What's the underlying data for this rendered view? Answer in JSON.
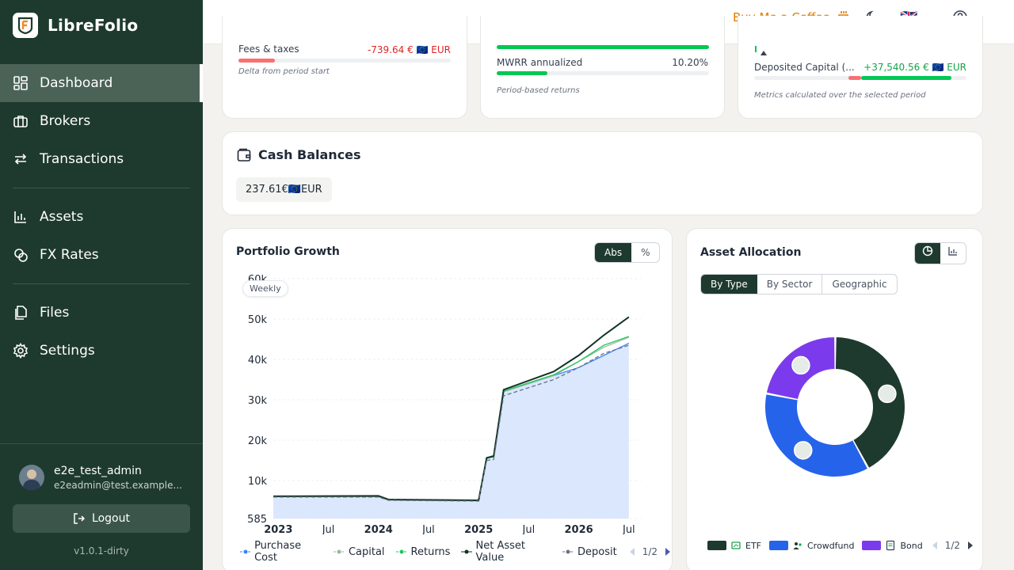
{
  "app": {
    "name": "LibreFolio",
    "version": "v1.0.1-dirty"
  },
  "nav": {
    "dashboard": "Dashboard",
    "brokers": "Brokers",
    "transactions": "Transactions",
    "assets": "Assets",
    "fx_rates": "FX Rates",
    "files": "Files",
    "settings": "Settings"
  },
  "user": {
    "name": "e2e_test_admin",
    "email": "e2eadmin@test.example...",
    "logout": "Logout"
  },
  "topbar": {
    "coffee": "Buy Me a Coffee",
    "language_flag": "🇬🇧"
  },
  "metrics": {
    "card1": {
      "label": "Fees & taxes",
      "value": "-739.64 € 🇪🇺 EUR",
      "hint": "Delta from period start",
      "bar_fraction": 0.17
    },
    "card2": {
      "label": "MWRR annualized",
      "value": "10.20%",
      "hint": "Period-based returns",
      "top_bar_fraction": 1.0,
      "bar_fraction": 0.24
    },
    "card3": {
      "label": "Deposited Capital (...",
      "value": "+37,540.56 € 🇪🇺 EUR",
      "hint": "Metrics calculated over the selected period"
    }
  },
  "cash": {
    "title": "Cash Balances",
    "chip": "237.61€🇪🇺EUR"
  },
  "growth": {
    "title": "Portfolio Growth",
    "toggle_abs": "Abs",
    "toggle_pct": "%",
    "freq": "Weekly",
    "legend": [
      "Purchase Cost",
      "Capital",
      "Returns",
      "Net Asset Value",
      "Deposit"
    ],
    "pager": "1/2"
  },
  "allocation": {
    "title": "Asset Allocation",
    "tabs": [
      "By Type",
      "By Sector",
      "Geographic"
    ],
    "legend": [
      "ETF",
      "Crowdfund",
      "Bond"
    ],
    "pager": "1/2"
  },
  "colors": {
    "sidebar": "#1e3a2f",
    "accent_green": "#00c853",
    "negative": "#dc2626",
    "coffee": "#e07b00"
  },
  "chart_data": [
    {
      "type": "line",
      "title": "Portfolio Growth",
      "y_ticks": [
        "585",
        "10k",
        "20k",
        "30k",
        "40k",
        "50k",
        "60k"
      ],
      "x_ticks": [
        "2023",
        "Jul",
        "2024",
        "Jul",
        "2025",
        "Jul",
        "2026",
        "Jul"
      ],
      "ylim": [
        585,
        60000
      ],
      "x": [
        2022.95,
        2024.0,
        2024.1,
        2025.0,
        2025.08,
        2025.15,
        2025.25,
        2025.75,
        2026.0,
        2026.25,
        2026.5
      ],
      "series": [
        {
          "name": "Purchase Cost",
          "color": "#3b82f6",
          "values": [
            6000,
            6000,
            5200,
            5000,
            15500,
            16000,
            32000,
            36000,
            38000,
            41000,
            44000
          ]
        },
        {
          "name": "Capital",
          "color": "#9ab8a2",
          "values": [
            6000,
            6000,
            5200,
            5000,
            15500,
            16000,
            32000,
            36000,
            39500,
            43000,
            45500
          ]
        },
        {
          "name": "Returns",
          "color": "#22c55e",
          "values": [
            6100,
            6100,
            5300,
            5100,
            15700,
            16200,
            32200,
            36200,
            39500,
            43500,
            45700
          ]
        },
        {
          "name": "Net Asset Value",
          "color": "#123325",
          "values": [
            6100,
            6200,
            5300,
            5100,
            15600,
            16000,
            32500,
            37000,
            41000,
            46000,
            50500
          ]
        },
        {
          "name": "Deposit",
          "color": "#6b7280",
          "values": [
            5900,
            5900,
            5100,
            4900,
            15000,
            15200,
            31000,
            35000,
            38000,
            41500,
            43500
          ]
        }
      ],
      "legend": "bottom"
    },
    {
      "type": "pie",
      "title": "Asset Allocation",
      "categories": [
        "ETF",
        "Crowdfund",
        "Bond"
      ],
      "values": [
        42,
        36,
        22
      ],
      "colors": [
        "#1e3a2f",
        "#2563eb",
        "#7c3aed"
      ],
      "legend": "bottom"
    }
  ]
}
